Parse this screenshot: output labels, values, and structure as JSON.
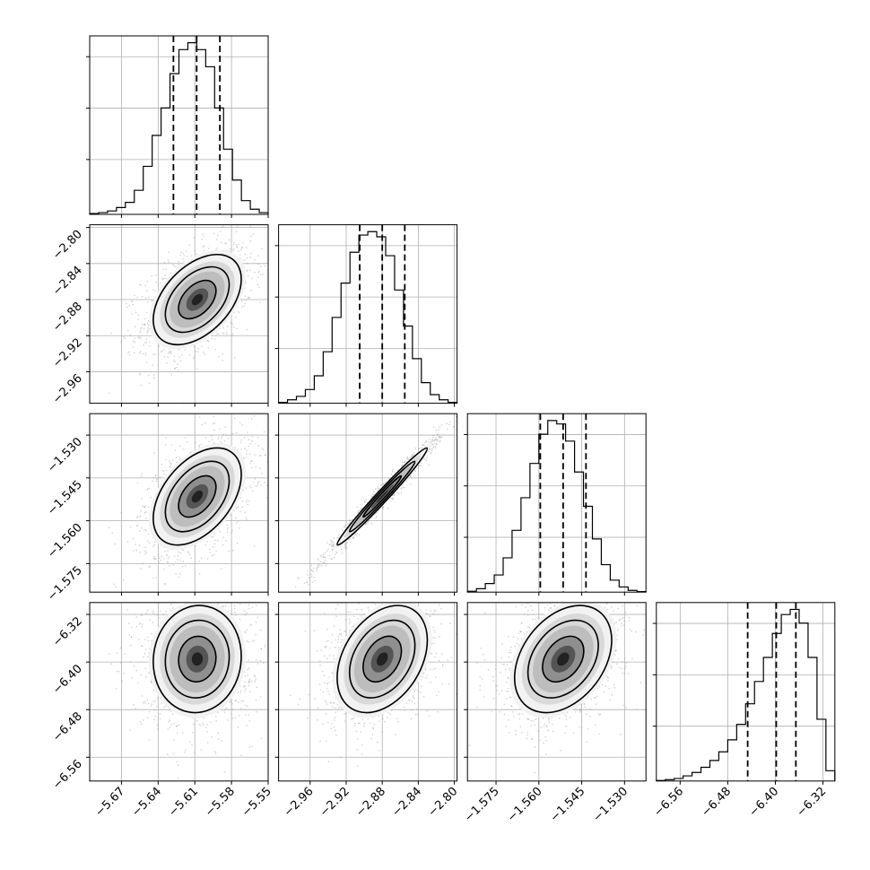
{
  "chart_data": {
    "type": "corner",
    "parameters": [
      {
        "ticks": [
          -5.67,
          -5.64,
          -5.61,
          -5.58,
          -5.55
        ],
        "tick_labels": [
          "−5.67",
          "−5.64",
          "−5.61",
          "−5.58",
          "−5.55"
        ],
        "range": [
          -5.696,
          -5.55
        ],
        "quantiles": [
          -5.6275,
          -5.6085,
          -5.5895
        ],
        "histogram": {
          "bin_edges": [
            -5.696,
            -5.6887,
            -5.6814,
            -5.6741,
            -5.6668,
            -5.6595,
            -5.6522,
            -5.6449,
            -5.6376,
            -5.6303,
            -5.623,
            -5.6157,
            -5.6084,
            -5.6011,
            -5.5938,
            -5.5865,
            -5.5792,
            -5.5719,
            -5.5646,
            -5.5573,
            -5.55
          ],
          "counts": [
            0.005,
            0.01,
            0.02,
            0.04,
            0.07,
            0.14,
            0.28,
            0.46,
            0.62,
            0.82,
            0.96,
            1.0,
            0.96,
            0.86,
            0.62,
            0.38,
            0.2,
            0.08,
            0.03,
            0.01
          ]
        }
      },
      {
        "ticks": [
          -2.96,
          -2.92,
          -2.88,
          -2.84,
          -2.8
        ],
        "tick_labels": [
          "−2.96",
          "−2.92",
          "−2.88",
          "−2.84",
          "−2.80"
        ],
        "range": [
          -2.995,
          -2.797
        ],
        "quantiles": [
          -2.905,
          -2.88,
          -2.855
        ],
        "histogram": {
          "bin_edges": [
            -2.995,
            -2.9851,
            -2.9752,
            -2.9653,
            -2.9554,
            -2.9455,
            -2.9356,
            -2.9257,
            -2.9158,
            -2.9059,
            -2.896,
            -2.8861,
            -2.8762,
            -2.8663,
            -2.8564,
            -2.8465,
            -2.8366,
            -2.8267,
            -2.8168,
            -2.8069,
            -2.797
          ],
          "counts": [
            0.005,
            0.02,
            0.04,
            0.08,
            0.16,
            0.3,
            0.5,
            0.7,
            0.88,
            0.98,
            1.0,
            0.97,
            0.86,
            0.66,
            0.45,
            0.26,
            0.12,
            0.05,
            0.02,
            0.005
          ]
        }
      },
      {
        "ticks": [
          -1.575,
          -1.56,
          -1.545,
          -1.53
        ],
        "tick_labels": [
          "−1.575",
          "−1.560",
          "−1.545",
          "−1.530"
        ],
        "range": [
          -1.585,
          -1.5225
        ],
        "quantiles": [
          -1.5595,
          -1.5515,
          -1.5435
        ],
        "histogram": {
          "bin_edges": [
            -1.585,
            -1.58187,
            -1.57875,
            -1.57562,
            -1.5725,
            -1.56938,
            -1.56625,
            -1.56312,
            -1.56,
            -1.55688,
            -1.55375,
            -1.55063,
            -1.5475,
            -1.54438,
            -1.54125,
            -1.53813,
            -1.535,
            -1.53188,
            -1.52875,
            -1.52563,
            -1.5225
          ],
          "counts": [
            0.005,
            0.02,
            0.05,
            0.1,
            0.2,
            0.36,
            0.55,
            0.75,
            0.92,
            1.0,
            0.98,
            0.88,
            0.7,
            0.5,
            0.31,
            0.16,
            0.07,
            0.03,
            0.01,
            0.003
          ]
        }
      },
      {
        "ticks": [
          -6.56,
          -6.48,
          -6.4,
          -6.32
        ],
        "tick_labels": [
          "−6.56",
          "−6.48",
          "−6.40",
          "−6.32"
        ],
        "range": [
          -6.6,
          -6.3
        ],
        "quantiles": [
          -6.4465,
          -6.3985,
          -6.3655
        ],
        "histogram": {
          "bin_edges": [
            -6.6,
            -6.585,
            -6.57,
            -6.555,
            -6.54,
            -6.525,
            -6.51,
            -6.495,
            -6.48,
            -6.465,
            -6.45,
            -6.435,
            -6.42,
            -6.405,
            -6.39,
            -6.375,
            -6.36,
            -6.345,
            -6.33,
            -6.315,
            -6.3
          ],
          "counts": [
            0.003,
            0.008,
            0.015,
            0.03,
            0.05,
            0.08,
            0.12,
            0.17,
            0.24,
            0.33,
            0.45,
            0.58,
            0.72,
            0.86,
            0.97,
            1.0,
            0.92,
            0.72,
            0.36,
            0.06
          ]
        }
      }
    ],
    "pairs": [
      {
        "row": 1,
        "col": 0,
        "mean": [
          -5.608,
          -2.88
        ],
        "sd": [
          0.018,
          0.025
        ],
        "corr": 0.45
      },
      {
        "row": 2,
        "col": 0,
        "mean": [
          -5.608,
          -1.5515
        ],
        "sd": [
          0.018,
          0.0085
        ],
        "corr": 0.45
      },
      {
        "row": 2,
        "col": 1,
        "mean": [
          -2.88,
          -1.5515
        ],
        "sd": [
          0.025,
          0.0085
        ],
        "corr": 0.985
      },
      {
        "row": 3,
        "col": 0,
        "mean": [
          -5.608,
          -6.395
        ],
        "sd": [
          0.018,
          0.045
        ],
        "corr": 0.05
      },
      {
        "row": 3,
        "col": 1,
        "mean": [
          -2.88,
          -6.395
        ],
        "sd": [
          0.025,
          0.045
        ],
        "corr": 0.35
      },
      {
        "row": 3,
        "col": 2,
        "mean": [
          -1.5515,
          -6.395
        ],
        "sd": [
          0.0085,
          0.045
        ],
        "corr": 0.35
      }
    ],
    "grid": true,
    "xlabel": "",
    "ylabel": "",
    "title": ""
  }
}
